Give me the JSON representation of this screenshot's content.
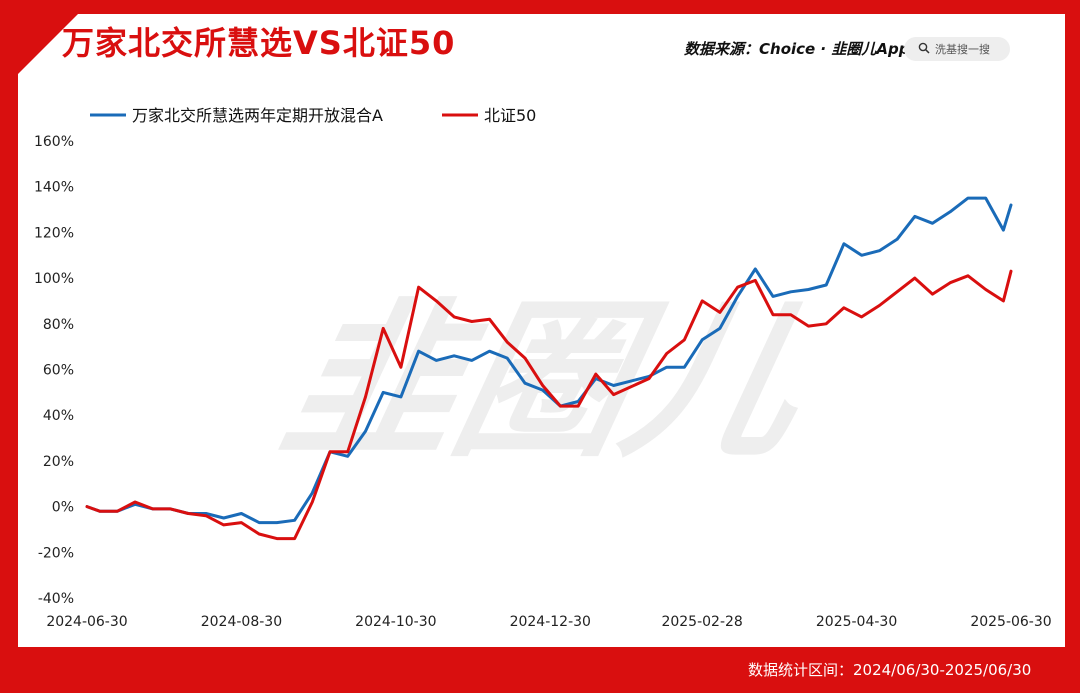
{
  "header": {
    "title": "万家北交所慧选VS北证50",
    "source_label": "数据来源：Choice · 韭圈儿App",
    "search_placeholder": "洗基搜一搜"
  },
  "footer": {
    "range_text": "数据统计区间：2024/06/30-2025/06/30"
  },
  "watermark": "韭圈儿",
  "colors": {
    "fund": "#1a6bb8",
    "index": "#d90f0f",
    "accent": "#d90f0f"
  },
  "chart_data": {
    "type": "line",
    "title": "万家北交所慧选VS北证50",
    "xlabel": "",
    "ylabel": "",
    "ylim": [
      -40,
      160
    ],
    "yticks": [
      -40,
      -20,
      0,
      20,
      40,
      60,
      80,
      100,
      120,
      140,
      160
    ],
    "ytick_labels": [
      "-40%",
      "-20%",
      "0%",
      "20%",
      "40%",
      "60%",
      "80%",
      "100%",
      "120%",
      "140%",
      "160%"
    ],
    "xticks": [
      "2024-06-30",
      "2024-08-30",
      "2024-10-30",
      "2024-12-30",
      "2025-02-28",
      "2025-04-30",
      "2025-06-30"
    ],
    "x": [
      "2024-06-30",
      "2024-07-05",
      "2024-07-12",
      "2024-07-19",
      "2024-07-26",
      "2024-08-02",
      "2024-08-09",
      "2024-08-16",
      "2024-08-23",
      "2024-08-30",
      "2024-09-06",
      "2024-09-13",
      "2024-09-20",
      "2024-09-27",
      "2024-10-04",
      "2024-10-11",
      "2024-10-18",
      "2024-10-25",
      "2024-11-01",
      "2024-11-08",
      "2024-11-15",
      "2024-11-22",
      "2024-11-29",
      "2024-12-06",
      "2024-12-13",
      "2024-12-20",
      "2024-12-27",
      "2025-01-03",
      "2025-01-10",
      "2025-01-17",
      "2025-01-24",
      "2025-02-07",
      "2025-02-14",
      "2025-02-21",
      "2025-02-28",
      "2025-03-07",
      "2025-03-14",
      "2025-03-21",
      "2025-03-28",
      "2025-04-04",
      "2025-04-11",
      "2025-04-18",
      "2025-04-25",
      "2025-05-02",
      "2025-05-09",
      "2025-05-16",
      "2025-05-23",
      "2025-05-30",
      "2025-06-06",
      "2025-06-13",
      "2025-06-20",
      "2025-06-27",
      "2025-06-30"
    ],
    "series": [
      {
        "name": "万家北交所慧选两年定期开放混合A",
        "color": "#1a6bb8",
        "values": [
          0,
          -2,
          -2,
          1,
          -1,
          -1,
          -3,
          -3,
          -5,
          -3,
          -7,
          -7,
          -6,
          6,
          24,
          22,
          33,
          50,
          48,
          68,
          64,
          66,
          64,
          68,
          65,
          54,
          51,
          44,
          46,
          56,
          53,
          57,
          61,
          61,
          73,
          78,
          92,
          104,
          92,
          94,
          95,
          97,
          115,
          110,
          112,
          117,
          127,
          124,
          129,
          135,
          135,
          121,
          132
        ]
      },
      {
        "name": "北证50",
        "color": "#d90f0f",
        "values": [
          0,
          -2,
          -2,
          2,
          -1,
          -1,
          -3,
          -4,
          -8,
          -7,
          -12,
          -14,
          -14,
          2,
          24,
          24,
          48,
          78,
          61,
          96,
          90,
          83,
          81,
          82,
          72,
          65,
          53,
          44,
          44,
          58,
          49,
          56,
          67,
          73,
          90,
          85,
          96,
          99,
          84,
          84,
          79,
          80,
          87,
          83,
          88,
          94,
          100,
          93,
          98,
          101,
          95,
          90,
          103
        ]
      }
    ],
    "legend_position": "top-left",
    "grid": false
  }
}
